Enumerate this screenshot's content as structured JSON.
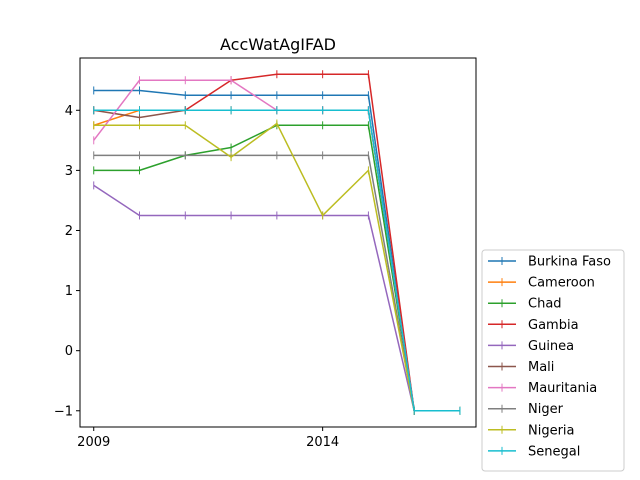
{
  "chart_data": {
    "type": "line",
    "title": "AccWatAgIFAD",
    "xlabel": "",
    "ylabel": "",
    "x": [
      2009,
      2010,
      2011,
      2012,
      2013,
      2014,
      2015,
      2016,
      2017
    ],
    "xticks": [
      2009,
      2014
    ],
    "xlim": [
      2008.7,
      2017.35
    ],
    "ylim": [
      -1.27,
      4.87
    ],
    "yticks": [
      -1,
      0,
      1,
      2,
      3,
      4
    ],
    "grid": false,
    "legend_position": "lower-right-outside",
    "series": [
      {
        "name": "Burkina Faso",
        "color": "#1f77b4",
        "values": [
          4.33,
          4.33,
          4.25,
          4.25,
          4.25,
          4.25,
          4.25,
          -1,
          -1
        ]
      },
      {
        "name": "Cameroon",
        "color": "#ff7f0e",
        "values": [
          3.75,
          4.0,
          4.0,
          4.0,
          4.0,
          4.0,
          4.0,
          -1,
          -1
        ]
      },
      {
        "name": "Chad",
        "color": "#2ca02c",
        "values": [
          3.0,
          3.0,
          3.25,
          3.38,
          3.75,
          3.75,
          3.75,
          -1,
          -1
        ]
      },
      {
        "name": "Gambia",
        "color": "#d62728",
        "values": [
          4.0,
          4.0,
          4.0,
          4.5,
          4.6,
          4.6,
          4.6,
          -1,
          -1
        ]
      },
      {
        "name": "Guinea",
        "color": "#9467bd",
        "values": [
          2.75,
          2.25,
          2.25,
          2.25,
          2.25,
          2.25,
          2.25,
          -1,
          -1
        ]
      },
      {
        "name": "Mali",
        "color": "#8c564b",
        "values": [
          4.0,
          3.88,
          4.0,
          4.0,
          4.0,
          4.0,
          4.0,
          -1,
          -1
        ]
      },
      {
        "name": "Mauritania",
        "color": "#e377c2",
        "values": [
          3.5,
          4.5,
          4.5,
          4.5,
          4.0,
          4.0,
          4.0,
          -1,
          -1
        ]
      },
      {
        "name": "Niger",
        "color": "#7f7f7f",
        "values": [
          3.25,
          3.25,
          3.25,
          3.25,
          3.25,
          3.25,
          3.25,
          -1,
          -1
        ]
      },
      {
        "name": "Nigeria",
        "color": "#bcbd22",
        "values": [
          3.75,
          3.75,
          3.75,
          3.22,
          3.78,
          2.25,
          3.0,
          -1,
          -1
        ]
      },
      {
        "name": "Senegal",
        "color": "#17becf",
        "values": [
          4.0,
          4.0,
          4.0,
          4.0,
          4.0,
          4.0,
          4.0,
          -1,
          -1
        ]
      }
    ]
  }
}
